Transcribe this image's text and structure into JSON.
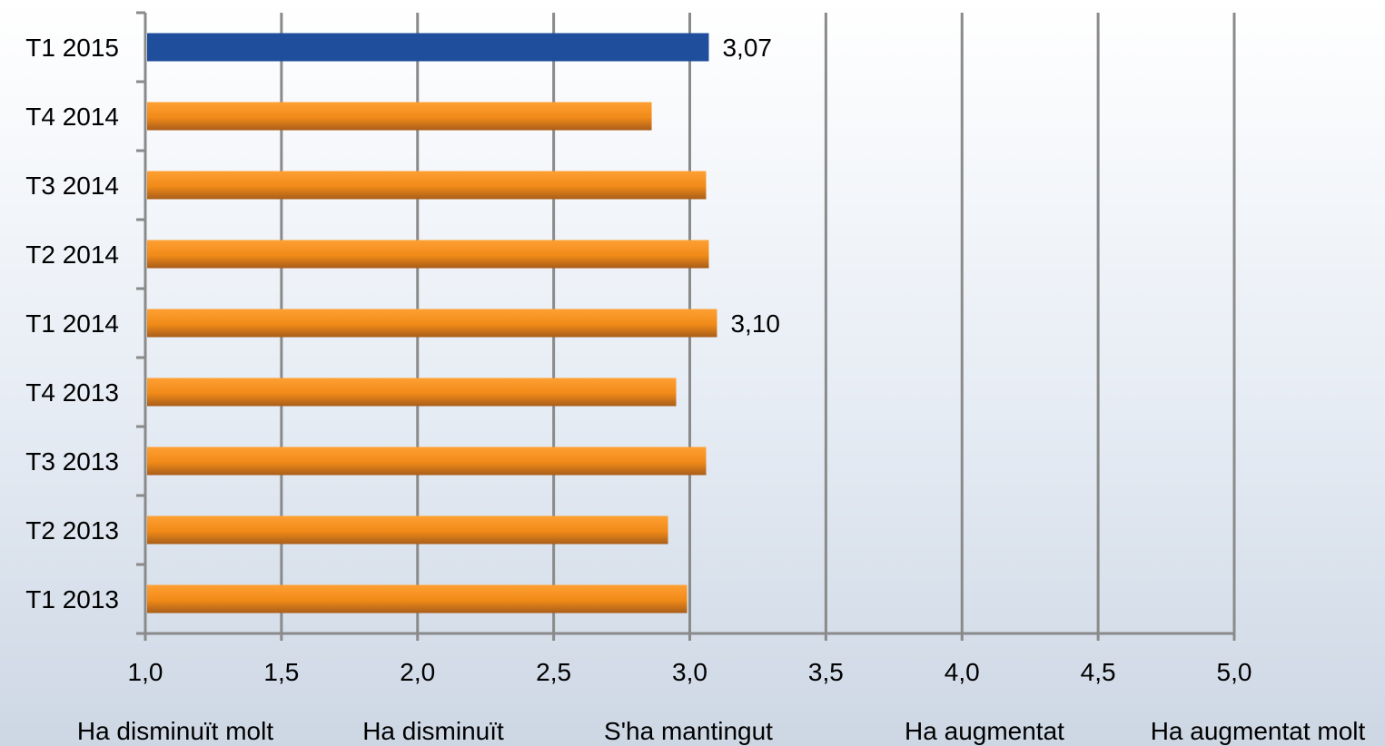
{
  "chart_data": {
    "type": "bar",
    "orientation": "horizontal",
    "title": "",
    "categories": [
      "T1 2015",
      "T4 2014",
      "T3 2014",
      "T2 2014",
      "T1 2014",
      "T4 2013",
      "T3 2013",
      "T2 2013",
      "T1 2013"
    ],
    "values": [
      3.07,
      2.86,
      3.06,
      3.07,
      3.1,
      2.95,
      3.06,
      2.92,
      2.99
    ],
    "data_labels": [
      "3,07",
      "",
      "",
      "",
      "3,10",
      "",
      "",
      "",
      ""
    ],
    "xlim": [
      1.0,
      5.0
    ],
    "x_ticks": [
      1.0,
      1.5,
      2.0,
      2.5,
      3.0,
      3.5,
      4.0,
      4.5,
      5.0
    ],
    "x_tick_labels": [
      "1,0",
      "1,5",
      "2,0",
      "2,5",
      "3,0",
      "3,5",
      "4,0",
      "4,5",
      "5,0"
    ],
    "scale_labels": [
      "Ha disminuït molt",
      "Ha disminuït",
      "S'ha mantingut",
      "Ha augmentat",
      "Ha augmentat molt"
    ],
    "grid": true,
    "colors": {
      "highlight": "#1f4e9c",
      "bar_light": "#ff9a1a",
      "bar_dark": "#b8651a",
      "grid": "#8a8a8a"
    }
  }
}
